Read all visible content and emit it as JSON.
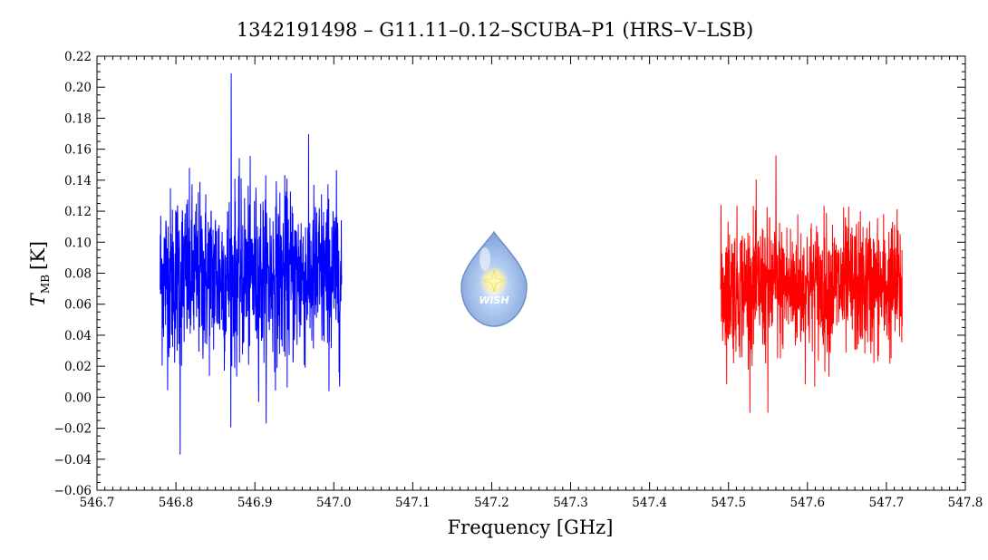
{
  "chart_data": {
    "type": "line",
    "title": "1342191498 – G11.11–0.12–SCUBA–P1 (HRS–V–LSB)",
    "xlabel": "Frequency [GHz]",
    "ylabel_main": "T",
    "ylabel_sub": "MB",
    "ylabel_unit": "[K]",
    "xlim": [
      546.7,
      547.8
    ],
    "ylim": [
      -0.06,
      0.22
    ],
    "x_ticks": [
      "546.7",
      "546.8",
      "546.9",
      "547.0",
      "547.1",
      "547.2",
      "547.3",
      "547.4",
      "547.5",
      "547.6",
      "547.7",
      "547.8"
    ],
    "y_ticks": [
      "−0.06",
      "−0.04",
      "−0.02",
      "0.00",
      "0.02",
      "0.04",
      "0.06",
      "0.08",
      "0.10",
      "0.12",
      "0.14",
      "0.16",
      "0.18",
      "0.20",
      "0.22"
    ],
    "grid": false,
    "series": [
      {
        "color": "#0000ff",
        "x_range": [
          546.78,
          547.01
        ],
        "mean": 0.078,
        "noise_amplitude": 0.028,
        "max": 0.209,
        "min": -0.037,
        "peak_at": 546.87
      },
      {
        "color": "#ff0000",
        "x_range": [
          547.49,
          547.72
        ],
        "mean": 0.071,
        "noise_amplitude": 0.022,
        "max": 0.156,
        "min": -0.01,
        "peak_at": 547.56
      }
    ]
  },
  "logo": {
    "text": "WISH",
    "colors": {
      "drop": "#8fb3e6",
      "highlight": "#f0f6ff",
      "star": "#ffe680"
    }
  }
}
